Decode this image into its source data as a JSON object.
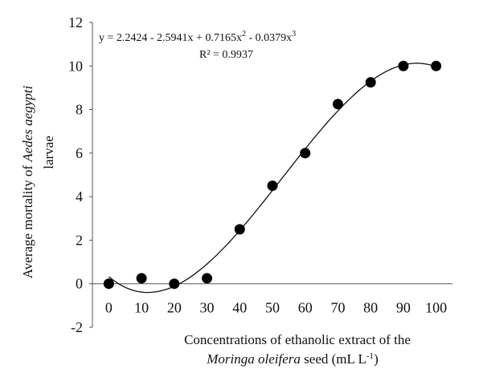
{
  "chart_data": {
    "type": "scatter",
    "title": "",
    "xlabel": {
      "line1": "Concentrations  of  ethanolic  extract  of  the",
      "line2_italic": "Moringa oleifera",
      "line2_rest": " seed (mL  L",
      "line2_sup": "-1",
      "line2_end": ")"
    },
    "ylabel": {
      "prefix": "Average  mortality  of ",
      "italic": "Aedes aegypti",
      "line2": "larvae"
    },
    "equation": {
      "p1": "y = 2.2424  - 2.5941x  + 0.7165x",
      "sup1": "2",
      "p2": "  - 0.0379x",
      "sup2": "3"
    },
    "r_squared": "R² = 0.9937",
    "xlim": [
      -5,
      105
    ],
    "ylim": [
      -2,
      12
    ],
    "x_ticks": [
      "0",
      "10",
      "20",
      "30",
      "40",
      "50",
      "60",
      "70",
      "80",
      "90",
      "100"
    ],
    "y_ticks": [
      "-2",
      "0",
      "2",
      "4",
      "6",
      "8",
      "10",
      "12"
    ],
    "grid": false,
    "legend": "none",
    "series": [
      {
        "x": [
          0,
          10,
          20,
          30,
          40,
          50,
          60,
          70,
          80,
          90,
          100
        ],
        "y": [
          0,
          0.25,
          0,
          0.25,
          2.5,
          4.5,
          6,
          8.25,
          9.25,
          10,
          10
        ]
      }
    ],
    "trendline": {
      "type": "polynomial",
      "coefficients": [
        2.2424,
        -2.5941,
        0.7165,
        -0.0379
      ],
      "x_unit_scale": 10
    }
  }
}
